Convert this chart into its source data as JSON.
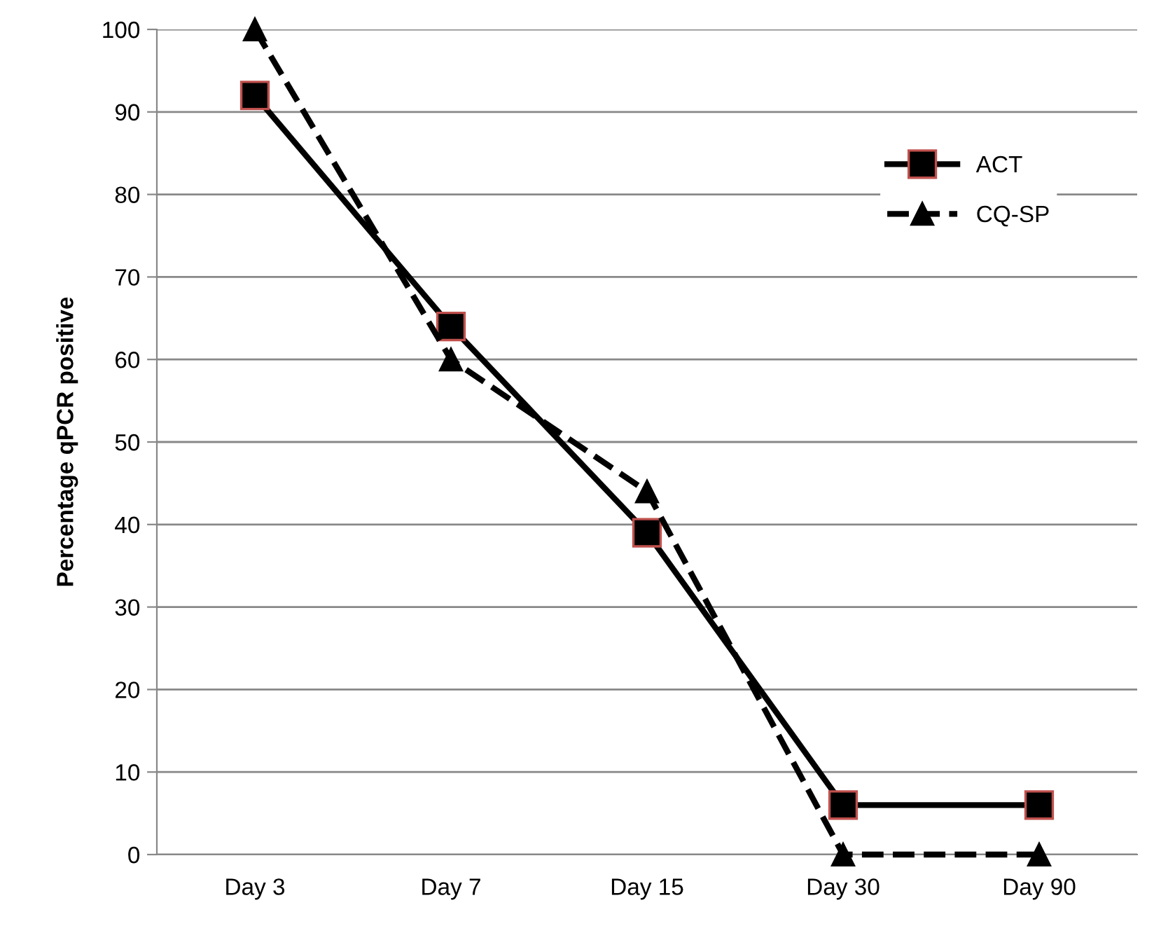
{
  "chart_data": {
    "type": "line",
    "ylabel": "Percentage qPCR positive",
    "categories": [
      "Day 3",
      "Day 7",
      "Day 15",
      "Day 30",
      "Day 90"
    ],
    "series": [
      {
        "name": "ACT",
        "color": "#000000",
        "values": [
          92,
          64,
          39,
          6,
          6
        ],
        "marker": "square",
        "line_style": "solid"
      },
      {
        "name": "CQ-SP",
        "color": "#000000",
        "values": [
          100,
          60,
          44,
          0,
          0
        ],
        "marker": "triangle",
        "line_style": "dashed"
      }
    ],
    "ylim": [
      0,
      100
    ],
    "yticks": [
      0,
      10,
      20,
      30,
      40,
      50,
      60,
      70,
      80,
      90,
      100
    ],
    "grid": "y",
    "legend": "top right"
  }
}
